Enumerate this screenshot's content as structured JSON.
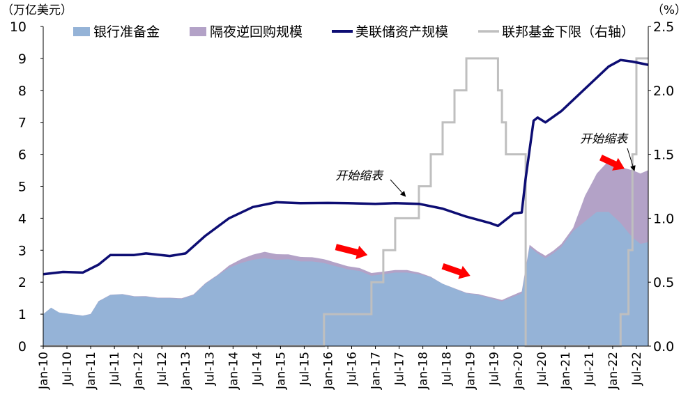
{
  "chart_data": {
    "type": "area",
    "left_unit": "（万亿美元）",
    "right_unit": "（%）",
    "left_ylim": [
      0,
      10
    ],
    "left_ticks": [
      "0",
      "1",
      "2",
      "3",
      "4",
      "5",
      "6",
      "7",
      "8",
      "9",
      "10"
    ],
    "right_ylim": [
      0,
      2.5
    ],
    "right_ticks": [
      "0.0",
      "0.5",
      "1.0",
      "1.5",
      "2.0",
      "2.5"
    ],
    "x_start": "2010-01",
    "x_end": "2022-10",
    "x_ticks": [
      "Jan-10",
      "Jul-10",
      "Jan-11",
      "Jul-11",
      "Jan-12",
      "Jul-12",
      "Jan-13",
      "Jul-13",
      "Jan-14",
      "Jul-14",
      "Jan-15",
      "Jul-15",
      "Jan-16",
      "Jul-16",
      "Jan-17",
      "Jul-17",
      "Jan-18",
      "Jul-18",
      "Jan-19",
      "Jul-19",
      "Jan-20",
      "Jul-20",
      "Jan-21",
      "Jul-21",
      "Jan-22",
      "Jul-22"
    ],
    "legend": [
      {
        "name": "银行准备金",
        "color": "#95b3d7",
        "kind": "area"
      },
      {
        "name": "隔夜逆回购规模",
        "color": "#b3a2c7",
        "kind": "area"
      },
      {
        "name": "美联储资产规模",
        "color": "#0d0d73",
        "kind": "line"
      },
      {
        "name": "联邦基金下限（右轴）",
        "color": "#bfbfbf",
        "kind": "line"
      }
    ],
    "series": [
      {
        "name": "银行准备金",
        "axis": "left",
        "points": [
          [
            "2010-01",
            1.0
          ],
          [
            "2010-03",
            1.2
          ],
          [
            "2010-05",
            1.05
          ],
          [
            "2010-08",
            1.0
          ],
          [
            "2010-11",
            0.95
          ],
          [
            "2011-01",
            1.0
          ],
          [
            "2011-03",
            1.4
          ],
          [
            "2011-06",
            1.6
          ],
          [
            "2011-09",
            1.62
          ],
          [
            "2011-12",
            1.55
          ],
          [
            "2012-03",
            1.55
          ],
          [
            "2012-06",
            1.5
          ],
          [
            "2012-09",
            1.5
          ],
          [
            "2012-12",
            1.48
          ],
          [
            "2013-03",
            1.6
          ],
          [
            "2013-06",
            1.95
          ],
          [
            "2013-09",
            2.2
          ],
          [
            "2013-12",
            2.45
          ],
          [
            "2014-03",
            2.6
          ],
          [
            "2014-06",
            2.7
          ],
          [
            "2014-09",
            2.75
          ],
          [
            "2014-12",
            2.7
          ],
          [
            "2015-03",
            2.72
          ],
          [
            "2015-06",
            2.65
          ],
          [
            "2015-09",
            2.65
          ],
          [
            "2015-12",
            2.6
          ],
          [
            "2016-03",
            2.5
          ],
          [
            "2016-06",
            2.4
          ],
          [
            "2016-09",
            2.35
          ],
          [
            "2016-12",
            2.2
          ],
          [
            "2017-03",
            2.25
          ],
          [
            "2017-06",
            2.3
          ],
          [
            "2017-09",
            2.3
          ],
          [
            "2017-12",
            2.25
          ],
          [
            "2018-03",
            2.15
          ],
          [
            "2018-06",
            1.95
          ],
          [
            "2018-09",
            1.8
          ],
          [
            "2018-12",
            1.65
          ],
          [
            "2019-03",
            1.6
          ],
          [
            "2019-06",
            1.5
          ],
          [
            "2019-09",
            1.4
          ],
          [
            "2019-12",
            1.55
          ],
          [
            "2020-02",
            1.65
          ],
          [
            "2020-04",
            3.1
          ],
          [
            "2020-06",
            2.9
          ],
          [
            "2020-08",
            2.75
          ],
          [
            "2020-10",
            2.9
          ],
          [
            "2020-12",
            3.1
          ],
          [
            "2021-03",
            3.6
          ],
          [
            "2021-06",
            3.9
          ],
          [
            "2021-09",
            4.2
          ],
          [
            "2021-12",
            4.2
          ],
          [
            "2022-03",
            3.85
          ],
          [
            "2022-06",
            3.4
          ],
          [
            "2022-08",
            3.2
          ],
          [
            "2022-10",
            3.25
          ]
        ]
      },
      {
        "name": "隔夜逆回购规模",
        "axis": "left",
        "points": [
          [
            "2010-01",
            0
          ],
          [
            "2013-09",
            0.02
          ],
          [
            "2014-03",
            0.12
          ],
          [
            "2014-09",
            0.2
          ],
          [
            "2015-03",
            0.15
          ],
          [
            "2015-12",
            0.12
          ],
          [
            "2016-06",
            0.1
          ],
          [
            "2017-03",
            0.08
          ],
          [
            "2017-09",
            0.08
          ],
          [
            "2018-03",
            0.02
          ],
          [
            "2018-06",
            0
          ],
          [
            "2021-03",
            0.1
          ],
          [
            "2021-06",
            0.8
          ],
          [
            "2021-09",
            1.2
          ],
          [
            "2021-12",
            1.6
          ],
          [
            "2022-03",
            1.75
          ],
          [
            "2022-06",
            2.1
          ],
          [
            "2022-08",
            2.2
          ],
          [
            "2022-10",
            2.25
          ]
        ]
      },
      {
        "name": "美联储资产规模",
        "axis": "left",
        "points": [
          [
            "2010-01",
            2.25
          ],
          [
            "2010-06",
            2.32
          ],
          [
            "2010-11",
            2.3
          ],
          [
            "2011-03",
            2.55
          ],
          [
            "2011-06",
            2.85
          ],
          [
            "2011-12",
            2.85
          ],
          [
            "2012-03",
            2.9
          ],
          [
            "2012-09",
            2.82
          ],
          [
            "2013-01",
            2.9
          ],
          [
            "2013-06",
            3.45
          ],
          [
            "2013-12",
            4.0
          ],
          [
            "2014-06",
            4.35
          ],
          [
            "2014-12",
            4.5
          ],
          [
            "2015-06",
            4.47
          ],
          [
            "2016-01",
            4.48
          ],
          [
            "2016-06",
            4.47
          ],
          [
            "2017-01",
            4.45
          ],
          [
            "2017-06",
            4.47
          ],
          [
            "2017-12",
            4.45
          ],
          [
            "2018-06",
            4.3
          ],
          [
            "2018-12",
            4.05
          ],
          [
            "2019-06",
            3.85
          ],
          [
            "2019-08",
            3.76
          ],
          [
            "2019-12",
            4.15
          ],
          [
            "2020-02",
            4.18
          ],
          [
            "2020-03",
            5.25
          ],
          [
            "2020-05",
            7.05
          ],
          [
            "2020-06",
            7.15
          ],
          [
            "2020-08",
            7.0
          ],
          [
            "2020-12",
            7.35
          ],
          [
            "2021-06",
            8.05
          ],
          [
            "2021-12",
            8.75
          ],
          [
            "2022-03",
            8.95
          ],
          [
            "2022-06",
            8.9
          ],
          [
            "2022-10",
            8.8
          ]
        ]
      },
      {
        "name": "联邦基金下限（右轴）",
        "axis": "right",
        "step": true,
        "points": [
          [
            "2010-01",
            0
          ],
          [
            "2015-12",
            0.25
          ],
          [
            "2016-12",
            0.5
          ],
          [
            "2017-03",
            0.75
          ],
          [
            "2017-06",
            1.0
          ],
          [
            "2017-12",
            1.25
          ],
          [
            "2018-03",
            1.5
          ],
          [
            "2018-06",
            1.75
          ],
          [
            "2018-09",
            2.0
          ],
          [
            "2018-12",
            2.25
          ],
          [
            "2019-08",
            2.0
          ],
          [
            "2019-09",
            1.75
          ],
          [
            "2019-10",
            1.5
          ],
          [
            "2020-03",
            0
          ],
          [
            "2022-03",
            0.25
          ],
          [
            "2022-05",
            0.75
          ],
          [
            "2022-06",
            1.5
          ],
          [
            "2022-07",
            2.25
          ],
          [
            "2022-10",
            2.25
          ]
        ]
      }
    ],
    "annotations": [
      {
        "text": "开始缩表",
        "target": "2017-10"
      },
      {
        "text": "开始缩表",
        "target": "2022-06"
      }
    ],
    "arrow_color": "#ff0000",
    "trend_arrows": [
      {
        "from": [
          "2016-03",
          3.1
        ],
        "to": [
          "2016-11",
          2.85
        ]
      },
      {
        "from": [
          "2018-06",
          2.5
        ],
        "to": [
          "2019-01",
          2.2
        ]
      },
      {
        "from": [
          "2021-10",
          5.9
        ],
        "to": [
          "2022-04",
          5.55
        ]
      }
    ]
  }
}
